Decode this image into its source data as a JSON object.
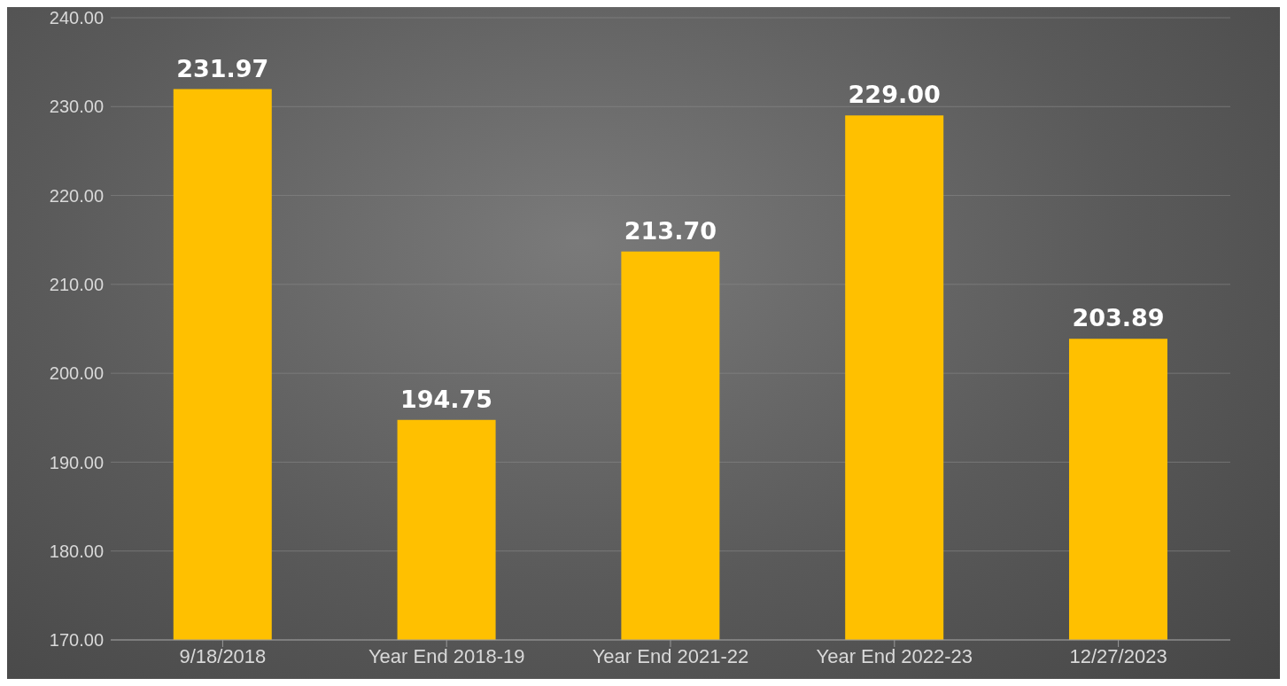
{
  "chart_data": {
    "type": "bar",
    "categories": [
      "9/18/2018",
      "Year End 2018-19",
      "Year End 2021-22",
      "Year End 2022-23",
      "12/27/2023"
    ],
    "values": [
      231.97,
      194.75,
      213.7,
      229.0,
      203.89
    ],
    "value_labels": [
      "231.97",
      "194.75",
      "213.70",
      "229.00",
      "203.89"
    ],
    "color": "#ffc000",
    "ylim": [
      170,
      240
    ],
    "yticks": [
      {
        "value": 170,
        "label": "170.00"
      },
      {
        "value": 180,
        "label": "180.00"
      },
      {
        "value": 190,
        "label": "190.00"
      },
      {
        "value": 200,
        "label": "200.00"
      },
      {
        "value": 210,
        "label": "210.00"
      },
      {
        "value": 220,
        "label": "220.00"
      },
      {
        "value": 230,
        "label": "230.00"
      },
      {
        "value": 240,
        "label": "240.00"
      }
    ],
    "grid": "y"
  }
}
